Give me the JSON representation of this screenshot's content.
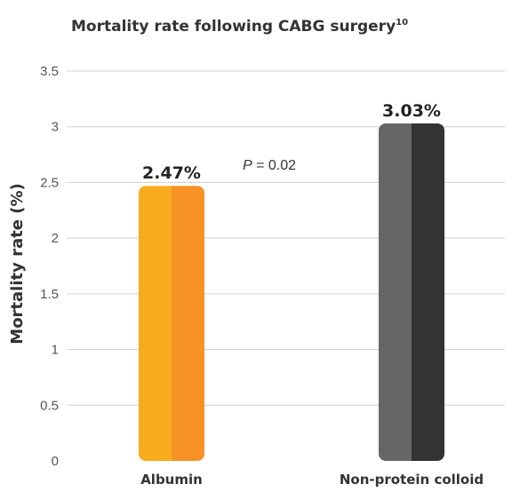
{
  "chart_data": {
    "type": "bar",
    "title": "Mortality rate following CABG surgery",
    "title_superscript": "10",
    "ylabel": "Mortality rate (%)",
    "xlabel": "",
    "ylim": [
      0,
      3.5
    ],
    "yticks": [
      0,
      0.5,
      1,
      1.5,
      2,
      2.5,
      3,
      3.5
    ],
    "ytick_labels": [
      "0",
      "0.5",
      "1",
      "1.5",
      "2",
      "2.5",
      "3",
      "3.5"
    ],
    "categories": [
      "Albumin",
      "Non-protein colloid"
    ],
    "values": [
      2.47,
      3.03
    ],
    "data_labels": [
      "2.47%",
      "3.03%"
    ],
    "bar_colors": [
      {
        "left": "#f9ab1e",
        "right": "#f79226"
      },
      {
        "left": "#666666",
        "right": "#333333"
      }
    ],
    "annotation": {
      "p_symbol": "P",
      "p_text": " = 0.02"
    },
    "grid": true,
    "legend": "none"
  }
}
